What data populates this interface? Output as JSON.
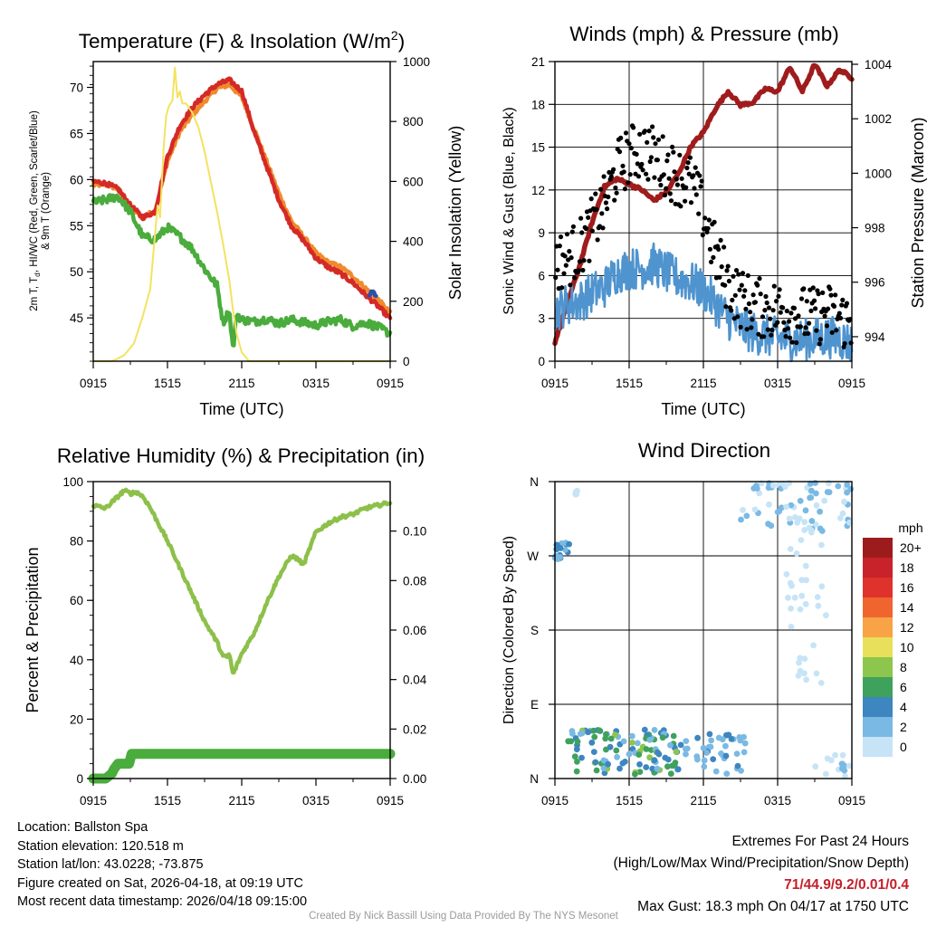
{
  "colors": {
    "temp": "#d42a26",
    "dew": "#4aac3c",
    "heatidx": "#2f4fa8",
    "temp9m": "#f08a2e",
    "insolation": "#f4e260",
    "wind": "#4f94cf",
    "gust": "#000000",
    "pressure": "#a01c1c",
    "rh": "#8dc04a",
    "precip": "#4aac3c"
  },
  "chart_data": [
    {
      "id": "temp",
      "type": "line",
      "title": "Temperature (F) & Insolation (W/m",
      "title_sup": "2",
      "title_close": ")",
      "xlabel": "Time (UTC)",
      "ylabel_left_line1": "2m T, T",
      "ylabel_left_sub": "d",
      "ylabel_left_line1b": ", HI/WC (Red, Green, Scarlet/Blue)",
      "ylabel_left_line2": "& 9m T (Orange)",
      "ylabel_right": "Solar Insolation (Yellow)",
      "x_ticks": [
        "0915",
        "1515",
        "2115",
        "0315",
        "0915"
      ],
      "x_range": [
        0,
        24
      ],
      "ylim_left": [
        40.3,
        72.8
      ],
      "yticks_left": [
        45,
        50,
        55,
        60,
        65,
        70
      ],
      "ylim_right": [
        0,
        1000
      ],
      "yticks_right": [
        0,
        200,
        400,
        600,
        800,
        1000
      ],
      "series": [
        {
          "name": "9m T (Orange)",
          "color_key": "temp9m",
          "axis": "left",
          "x": [
            0,
            1,
            2,
            3,
            4,
            5,
            6,
            7,
            8,
            9,
            10,
            11,
            12,
            13,
            14,
            15,
            16,
            17,
            18,
            19,
            20,
            21,
            22,
            23,
            24
          ],
          "values": [
            59.4,
            59.5,
            59.0,
            57.0,
            55.9,
            56.6,
            62.0,
            65.2,
            67.0,
            68.5,
            69.9,
            70.3,
            69.0,
            65.5,
            62.0,
            58.5,
            55.5,
            53.8,
            52.0,
            51.0,
            50.5,
            49.5,
            48.2,
            47.0,
            45.5
          ]
        },
        {
          "name": "2m T (Red)",
          "color_key": "temp",
          "axis": "left",
          "x": [
            0,
            1,
            2,
            3,
            4,
            5,
            6,
            7,
            8,
            9,
            10,
            11,
            12,
            13,
            14,
            15,
            16,
            17,
            18,
            19,
            20,
            21,
            22,
            23,
            24
          ],
          "values": [
            59.8,
            59.6,
            59.0,
            57.2,
            55.9,
            56.5,
            62.5,
            65.8,
            67.8,
            69.2,
            70.3,
            70.8,
            69.6,
            65.2,
            61.5,
            57.8,
            55.0,
            53.4,
            51.5,
            50.5,
            49.8,
            48.8,
            47.5,
            46.3,
            44.9
          ]
        },
        {
          "name": "HI/WC (Blue)",
          "color_key": "heatidx",
          "axis": "left",
          "x": [
            22.3,
            22.6,
            22.9
          ],
          "values": [
            47.5,
            47.8,
            47.4
          ]
        },
        {
          "name": "Td (Green)",
          "color_key": "dew",
          "axis": "left",
          "x": [
            0,
            1,
            2,
            3,
            4,
            5,
            6,
            7,
            8,
            9,
            10,
            10.5,
            11,
            11.3,
            11.6,
            12,
            13,
            14,
            15,
            16,
            17,
            18,
            19,
            20,
            21,
            22,
            23,
            24
          ],
          "values": [
            57.5,
            57.8,
            58.2,
            56.5,
            53.8,
            53.5,
            54.8,
            53.8,
            52.5,
            50.3,
            48.5,
            44.5,
            45.8,
            41.5,
            45.5,
            44.8,
            44.6,
            44.9,
            44.4,
            44.8,
            44.5,
            44.2,
            44.6,
            44.8,
            44.1,
            44.5,
            44.0,
            43.3
          ]
        },
        {
          "name": "Solar Insolation (Yellow)",
          "color_key": "insolation",
          "axis": "right",
          "x": [
            0,
            1,
            1.4,
            1.8,
            2.5,
            3.3,
            4.0,
            4.6,
            4.9,
            5.2,
            5.4,
            5.7,
            5.9,
            6.1,
            6.4,
            6.6,
            6.8,
            7.0,
            7.2,
            7.5,
            8.0,
            8.5,
            9.0,
            9.5,
            10.0,
            10.5,
            11.0,
            11.3,
            11.6,
            12.0,
            12.6,
            13,
            14,
            15,
            24
          ],
          "values": [
            0,
            0,
            0,
            5,
            20,
            60,
            150,
            240,
            380,
            520,
            480,
            720,
            820,
            850,
            870,
            980,
            880,
            900,
            860,
            860,
            830,
            780,
            700,
            600,
            500,
            390,
            270,
            170,
            90,
            30,
            0,
            0,
            0,
            0,
            0
          ]
        }
      ]
    },
    {
      "id": "wind",
      "type": "line",
      "title": "Winds (mph) & Pressure (mb)",
      "xlabel": "Time (UTC)",
      "ylabel_left": "Sonic Wind & Gust (Blue, Black)",
      "ylabel_right": "Station Pressure (Maroon)",
      "x_ticks": [
        "0915",
        "1515",
        "2115",
        "0315",
        "0915"
      ],
      "x_range": [
        0,
        24
      ],
      "ylim_left": [
        0,
        21
      ],
      "yticks_left": [
        0,
        3,
        6,
        9,
        12,
        15,
        18,
        21
      ],
      "ylim_right": [
        993.1,
        1004.1
      ],
      "yticks_right": [
        994,
        996,
        998,
        1000,
        1002,
        1004
      ],
      "series": [
        {
          "name": "Station Pressure (Maroon)",
          "color_key": "pressure",
          "axis": "right",
          "x": [
            0,
            1,
            2,
            3,
            4,
            5,
            6,
            7,
            8,
            9,
            10,
            11,
            12,
            13,
            14,
            15,
            16,
            17,
            18,
            19,
            20,
            21,
            22,
            23,
            24
          ],
          "values": [
            993.8,
            995.2,
            996.6,
            998.2,
            999.5,
            999.8,
            999.6,
            999.4,
            999.0,
            999.3,
            1000.0,
            1001.0,
            1001.5,
            1002.4,
            1003.0,
            1002.5,
            1002.6,
            1003.1,
            1003.0,
            1003.9,
            1003.0,
            1004.0,
            1003.2,
            1003.8,
            1003.5
          ]
        },
        {
          "name": "Sonic Wind (Blue)",
          "color_key": "wind",
          "axis": "left",
          "style": "noisy",
          "x": [
            0,
            1,
            2,
            3,
            4,
            5,
            6,
            7,
            8,
            9,
            10,
            11,
            12,
            13,
            14,
            15,
            16,
            17,
            18,
            19,
            20,
            21,
            22,
            23,
            24
          ],
          "values": [
            3.5,
            4.0,
            4.2,
            4.8,
            5.2,
            6.2,
            6.5,
            6.5,
            6.8,
            6.2,
            5.8,
            5.5,
            5.0,
            4.0,
            3.0,
            2.4,
            2.0,
            1.8,
            1.6,
            1.5,
            1.5,
            1.6,
            1.7,
            1.6,
            1.2
          ],
          "amplitude": 1.5
        },
        {
          "name": "Gust (Black)",
          "color_key": "gust",
          "axis": "left",
          "style": "scatter",
          "x": [
            0,
            1,
            2,
            3,
            4,
            5,
            6,
            7,
            8,
            9,
            10,
            11,
            12,
            13,
            14,
            15,
            16,
            17,
            18,
            19,
            20,
            21,
            22,
            23,
            24
          ],
          "values": [
            6.5,
            6.8,
            7.5,
            9.0,
            10.5,
            13.0,
            14.0,
            14.5,
            14.0,
            13.2,
            12.5,
            12.0,
            10.0,
            7.0,
            5.0,
            4.0,
            3.5,
            3.2,
            3.2,
            3.0,
            2.8,
            2.7,
            3.0,
            2.6,
            2.2
          ],
          "amplitude": 3.0
        }
      ]
    },
    {
      "id": "rh",
      "type": "line",
      "title": "Relative Humidity (%) & Precipitation (in)",
      "ylabel_left": "Percent & Precipitation",
      "x_ticks": [
        "0915",
        "1515",
        "2115",
        "0315",
        "0915"
      ],
      "x_range": [
        0,
        24
      ],
      "ylim_left": [
        0,
        100
      ],
      "yticks_left": [
        0,
        20,
        40,
        60,
        80,
        100
      ],
      "ylim_right": [
        0,
        0.12
      ],
      "yticks_right": [
        "0.00",
        "0.02",
        "0.04",
        "0.06",
        "0.08",
        "0.10"
      ],
      "series": [
        {
          "name": "Relative Humidity",
          "color_key": "rh",
          "axis": "left",
          "x": [
            0,
            1,
            2,
            2.5,
            3,
            3.5,
            4,
            4.5,
            5,
            6,
            7,
            8,
            9,
            10,
            10.5,
            10.8,
            11.0,
            11.3,
            12,
            13,
            14,
            15,
            16,
            16.5,
            17,
            18,
            19,
            20,
            21,
            22,
            23,
            24
          ],
          "values": [
            92,
            91,
            95,
            97,
            96,
            96.5,
            95,
            92,
            88,
            80,
            71,
            62,
            53,
            46,
            41,
            41,
            42,
            35,
            42,
            49,
            59,
            68,
            75,
            74,
            72,
            83,
            86,
            88,
            89,
            91,
            92,
            93
          ]
        },
        {
          "name": "Precipitation",
          "color_key": "precip",
          "axis": "right",
          "x": [
            0,
            1.0,
            1.5,
            1.7,
            2.0,
            2.5,
            2.9,
            3.1,
            3.5,
            24
          ],
          "values": [
            0,
            0,
            0.002,
            0.004,
            0.006,
            0.006,
            0.006,
            0.01,
            0.01,
            0.01
          ]
        }
      ]
    },
    {
      "id": "dir",
      "type": "scatter",
      "title": "Wind Direction",
      "ylabel_left": "Direction (Colored By Speed)",
      "x_ticks": [
        "0915",
        "1515",
        "2115",
        "0315",
        "0915"
      ],
      "x_range": [
        0,
        24
      ],
      "y_labels": [
        "N",
        "E",
        "S",
        "W",
        "N"
      ],
      "ylim": [
        0,
        360
      ],
      "legend_title": "mph",
      "legend_labels": [
        "20+",
        "18",
        "16",
        "14",
        "12",
        "10",
        "8",
        "6",
        "4",
        "2",
        "0"
      ],
      "legend_colors": [
        "#9c1c1e",
        "#c8232b",
        "#e0322d",
        "#f0652f",
        "#f8a345",
        "#e8e05a",
        "#8cc64c",
        "#3fa25c",
        "#3d86c0",
        "#7ab9e4",
        "#c6e4f6"
      ],
      "clusters": [
        {
          "x": [
            0,
            1.2
          ],
          "dir": [
            266,
            286
          ],
          "speed": [
            3,
            5
          ],
          "n": 16
        },
        {
          "x": [
            1.6,
            1.8
          ],
          "dir": [
            344,
            350
          ],
          "speed": [
            1,
            2
          ],
          "n": 4
        },
        {
          "x": [
            1.0,
            10.0
          ],
          "dir": [
            5,
            60
          ],
          "speed": [
            3,
            8.5
          ],
          "n": 110
        },
        {
          "x": [
            10.0,
            15.5
          ],
          "dir": [
            5,
            55
          ],
          "speed": [
            2,
            5
          ],
          "n": 40
        },
        {
          "x": [
            15.0,
            24.0
          ],
          "dir": [
            300,
            360
          ],
          "speed": [
            0,
            4
          ],
          "n": 70
        },
        {
          "x": [
            18.5,
            22.0
          ],
          "dir": [
            110,
            300
          ],
          "speed": [
            0,
            2
          ],
          "n": 32
        },
        {
          "x": [
            21.0,
            24.0
          ],
          "dir": [
            0,
            30
          ],
          "speed": [
            0,
            3
          ],
          "n": 14
        }
      ]
    }
  ],
  "footer": {
    "location": "Location: Ballston Spa",
    "elevation": "Station elevation: 120.518 m",
    "latlon": "Station lat/lon: 43.0228; -73.875",
    "created": "Figure created on Sat, 2026-04-18, at 09:19 UTC",
    "recent": "Most recent data timestamp: 2026/04/18 09:15:00",
    "extremes_title": "Extremes For Past 24 Hours",
    "extremes_desc": "(High/Low/Max Wind/Precipitation/Snow Depth)",
    "extremes_values": "71/44.9/9.2/0.01/0.4",
    "max_gust": "Max Gust: 18.3 mph On 04/17 at 1750 UTC",
    "credit": "Created By Nick Bassill Using Data Provided By The NYS Mesonet"
  }
}
